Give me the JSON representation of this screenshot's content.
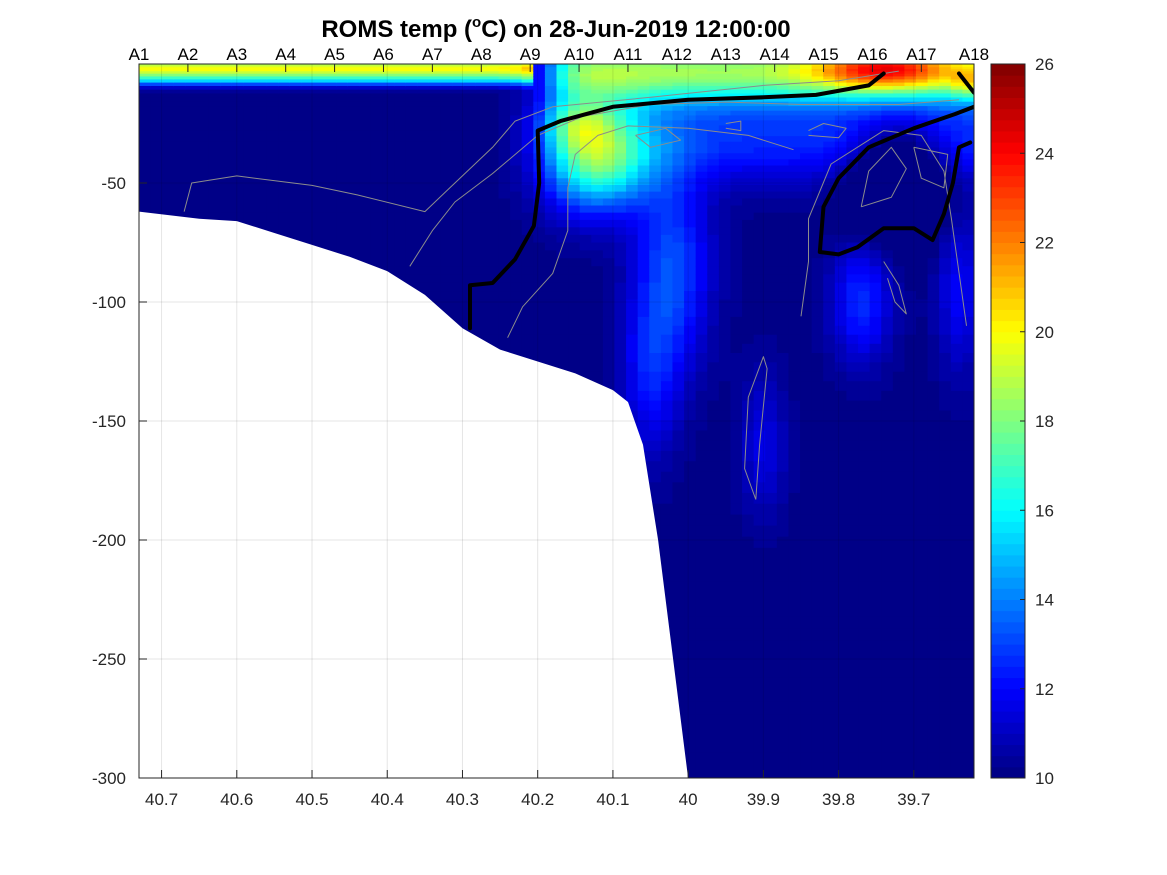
{
  "chart_data": {
    "type": "heatmap",
    "title": {
      "prefix": "ROMS temp (",
      "superscript": "o",
      "suffix": "C) on 28-Jun-2019 12:00:00"
    },
    "xlabel": "",
    "ylabel": "",
    "x_range": [
      40.73,
      39.62
    ],
    "y_range": [
      -300,
      0
    ],
    "x_ticks": [
      {
        "value": 40.7,
        "label": "40.7"
      },
      {
        "value": 40.6,
        "label": "40.6"
      },
      {
        "value": 40.5,
        "label": "40.5"
      },
      {
        "value": 40.4,
        "label": "40.4"
      },
      {
        "value": 40.3,
        "label": "40.3"
      },
      {
        "value": 40.2,
        "label": "40.2"
      },
      {
        "value": 40.1,
        "label": "40.1"
      },
      {
        "value": 40.0,
        "label": "40"
      },
      {
        "value": 39.9,
        "label": "39.9"
      },
      {
        "value": 39.8,
        "label": "39.8"
      },
      {
        "value": 39.7,
        "label": "39.7"
      }
    ],
    "y_ticks": [
      {
        "value": -50,
        "label": "-50"
      },
      {
        "value": -100,
        "label": "-100"
      },
      {
        "value": -150,
        "label": "-150"
      },
      {
        "value": -200,
        "label": "-200"
      },
      {
        "value": -250,
        "label": "-250"
      },
      {
        "value": -300,
        "label": "-300"
      }
    ],
    "stations": [
      {
        "label": "A1",
        "x": 40.73
      },
      {
        "label": "A2",
        "x": 40.665
      },
      {
        "label": "A3",
        "x": 40.6
      },
      {
        "label": "A4",
        "x": 40.535
      },
      {
        "label": "A5",
        "x": 40.47
      },
      {
        "label": "A6",
        "x": 40.405
      },
      {
        "label": "A7",
        "x": 40.34
      },
      {
        "label": "A8",
        "x": 40.275
      },
      {
        "label": "A9",
        "x": 40.21
      },
      {
        "label": "A10",
        "x": 40.145
      },
      {
        "label": "A11",
        "x": 40.08
      },
      {
        "label": "A12",
        "x": 40.015
      },
      {
        "label": "A13",
        "x": 39.95
      },
      {
        "label": "A14",
        "x": 39.885
      },
      {
        "label": "A15",
        "x": 39.82
      },
      {
        "label": "A16",
        "x": 39.755
      },
      {
        "label": "A17",
        "x": 39.69
      },
      {
        "label": "A18",
        "x": 39.62
      }
    ],
    "colorbar": {
      "colormap": "jet",
      "range": [
        10,
        26
      ],
      "ticks": [
        10,
        12,
        14,
        16,
        18,
        20,
        22,
        24,
        26
      ]
    },
    "bottom_depth": [
      [
        40.73,
        -62
      ],
      [
        40.65,
        -65
      ],
      [
        40.6,
        -66
      ],
      [
        40.55,
        -71
      ],
      [
        40.5,
        -76
      ],
      [
        40.45,
        -81
      ],
      [
        40.4,
        -87
      ],
      [
        40.35,
        -97
      ],
      [
        40.3,
        -111
      ],
      [
        40.25,
        -120
      ],
      [
        40.2,
        -125
      ],
      [
        40.15,
        -130
      ],
      [
        40.1,
        -137
      ],
      [
        40.08,
        -142
      ],
      [
        40.06,
        -160
      ],
      [
        40.04,
        -200
      ],
      [
        40.02,
        -250
      ],
      [
        40.0,
        -300
      ]
    ],
    "isotherm_thick": [
      [
        [
          40.29,
          -111
        ],
        [
          40.29,
          -93
        ],
        [
          40.26,
          -92
        ],
        [
          40.23,
          -82
        ],
        [
          40.205,
          -68
        ],
        [
          40.198,
          -50
        ],
        [
          40.2,
          -28
        ],
        [
          40.17,
          -24
        ],
        [
          40.1,
          -18
        ],
        [
          40.0,
          -15
        ],
        [
          39.9,
          -14
        ],
        [
          39.83,
          -13
        ],
        [
          39.76,
          -9
        ],
        [
          39.74,
          -4
        ]
      ],
      [
        [
          39.64,
          -4
        ],
        [
          39.62,
          -12
        ]
      ],
      [
        [
          39.62,
          -18
        ],
        [
          39.645,
          -21
        ],
        [
          39.7,
          -27
        ],
        [
          39.76,
          -35
        ],
        [
          39.8,
          -48
        ],
        [
          39.82,
          -60
        ],
        [
          39.825,
          -79
        ],
        [
          39.8,
          -80
        ],
        [
          39.775,
          -77
        ],
        [
          39.74,
          -69
        ],
        [
          39.7,
          -69
        ],
        [
          39.675,
          -74
        ],
        [
          39.66,
          -63
        ],
        [
          39.648,
          -50
        ],
        [
          39.64,
          -35
        ],
        [
          39.625,
          -33
        ]
      ]
    ],
    "isotherm_thin": [
      [
        [
          40.67,
          -62
        ],
        [
          40.66,
          -50
        ],
        [
          40.6,
          -47
        ],
        [
          40.5,
          -51
        ],
        [
          40.44,
          -55
        ],
        [
          40.35,
          -62
        ],
        [
          40.32,
          -53
        ],
        [
          40.26,
          -35
        ],
        [
          40.23,
          -24
        ],
        [
          40.18,
          -18
        ],
        [
          40.05,
          -14
        ],
        [
          39.9,
          -9
        ],
        [
          39.8,
          -7
        ],
        [
          39.72,
          -3
        ]
      ],
      [
        [
          40.37,
          -85
        ],
        [
          40.34,
          -70
        ],
        [
          40.31,
          -58
        ],
        [
          40.26,
          -46
        ],
        [
          40.2,
          -30
        ],
        [
          40.14,
          -22
        ],
        [
          40.05,
          -17
        ],
        [
          39.95,
          -16
        ],
        [
          39.85,
          -17
        ],
        [
          39.72,
          -17
        ],
        [
          39.64,
          -15
        ]
      ],
      [
        [
          40.24,
          -115
        ],
        [
          40.22,
          -102
        ],
        [
          40.18,
          -88
        ],
        [
          40.16,
          -70
        ],
        [
          40.16,
          -52
        ],
        [
          40.15,
          -38
        ],
        [
          40.12,
          -30
        ],
        [
          40.08,
          -26
        ],
        [
          40.0,
          -27
        ],
        [
          39.92,
          -30
        ],
        [
          39.86,
          -36
        ]
      ],
      [
        [
          40.07,
          -30
        ],
        [
          40.03,
          -27
        ],
        [
          40.01,
          -32
        ],
        [
          40.05,
          -35
        ],
        [
          40.07,
          -30
        ]
      ],
      [
        [
          39.95,
          -25
        ],
        [
          39.93,
          -24
        ],
        [
          39.93,
          -28
        ],
        [
          39.95,
          -27
        ]
      ],
      [
        [
          39.84,
          -28
        ],
        [
          39.82,
          -25
        ],
        [
          39.79,
          -27
        ],
        [
          39.8,
          -31
        ],
        [
          39.84,
          -30
        ]
      ],
      [
        [
          39.91,
          -183
        ],
        [
          39.905,
          -160
        ],
        [
          39.895,
          -128
        ],
        [
          39.9,
          -123
        ],
        [
          39.92,
          -140
        ],
        [
          39.925,
          -170
        ],
        [
          39.91,
          -183
        ]
      ],
      [
        [
          39.85,
          -106
        ],
        [
          39.84,
          -83
        ],
        [
          39.84,
          -65
        ],
        [
          39.81,
          -42
        ],
        [
          39.74,
          -28
        ],
        [
          39.69,
          -30
        ],
        [
          39.66,
          -45
        ],
        [
          39.65,
          -65
        ],
        [
          39.63,
          -110
        ]
      ],
      [
        [
          39.77,
          -60
        ],
        [
          39.76,
          -45
        ],
        [
          39.73,
          -35
        ],
        [
          39.71,
          -44
        ],
        [
          39.73,
          -56
        ],
        [
          39.77,
          -60
        ]
      ],
      [
        [
          39.74,
          -83
        ],
        [
          39.72,
          -93
        ],
        [
          39.71,
          -105
        ],
        [
          39.725,
          -100
        ],
        [
          39.735,
          -90
        ]
      ],
      [
        [
          39.7,
          -35
        ],
        [
          39.69,
          -48
        ],
        [
          39.66,
          -52
        ],
        [
          39.655,
          -38
        ],
        [
          39.7,
          -35
        ]
      ]
    ]
  }
}
